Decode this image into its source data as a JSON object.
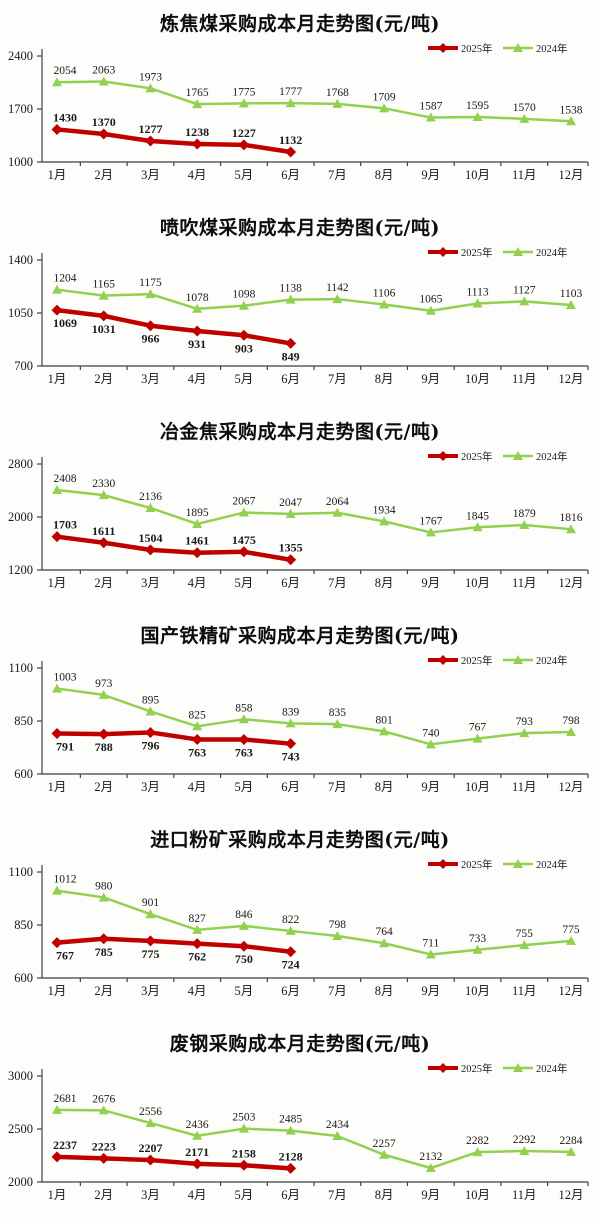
{
  "unit_note": "(元/吨)",
  "colors": {
    "red_2025": "#c00000",
    "green_2024": "#92d050",
    "axis": "#404040",
    "label": "#1a1a1a"
  },
  "legend": {
    "series_2025": "2025年",
    "series_2024": "2024年"
  },
  "chart_data": [
    {
      "type": "line",
      "title": "炼焦煤采购成本月走势图(元/吨)",
      "categories": [
        "1月",
        "2月",
        "3月",
        "4月",
        "5月",
        "6月",
        "7月",
        "8月",
        "9月",
        "10月",
        "11月",
        "12月"
      ],
      "ylim": [
        1000,
        2400
      ],
      "yticks": [
        1000,
        1700,
        2400
      ],
      "series": [
        {
          "name": "2025年",
          "color": "#c00000",
          "marker": "diamond",
          "width": 4.5,
          "labels": "above",
          "bold": true,
          "values": [
            1430,
            1370,
            1277,
            1238,
            1227,
            1132
          ]
        },
        {
          "name": "2024年",
          "color": "#92d050",
          "marker": "triangle",
          "width": 2.5,
          "labels": "above",
          "bold": false,
          "values": [
            2054,
            2063,
            1973,
            1765,
            1775,
            1777,
            1768,
            1709,
            1587,
            1595,
            1570,
            1538
          ]
        }
      ]
    },
    {
      "type": "line",
      "title": "喷吹煤采购成本月走势图(元/吨)",
      "categories": [
        "1月",
        "2月",
        "3月",
        "4月",
        "5月",
        "6月",
        "7月",
        "8月",
        "9月",
        "10月",
        "11月",
        "12月"
      ],
      "ylim": [
        700,
        1400
      ],
      "yticks": [
        700,
        1050,
        1400
      ],
      "series": [
        {
          "name": "2025年",
          "color": "#c00000",
          "marker": "diamond",
          "width": 4.5,
          "labels": "below",
          "bold": true,
          "values": [
            1069,
            1031,
            966,
            931,
            903,
            849
          ]
        },
        {
          "name": "2024年",
          "color": "#92d050",
          "marker": "triangle",
          "width": 2.5,
          "labels": "above",
          "bold": false,
          "values": [
            1204,
            1165,
            1175,
            1078,
            1098,
            1138,
            1142,
            1106,
            1065,
            1113,
            1127,
            1103
          ]
        }
      ]
    },
    {
      "type": "line",
      "title": "冶金焦采购成本月走势图(元/吨)",
      "categories": [
        "1月",
        "2月",
        "3月",
        "4月",
        "5月",
        "6月",
        "7月",
        "8月",
        "9月",
        "10月",
        "11月",
        "12月"
      ],
      "ylim": [
        1200,
        2800
      ],
      "yticks": [
        1200,
        2000,
        2800
      ],
      "series": [
        {
          "name": "2025年",
          "color": "#c00000",
          "marker": "diamond",
          "width": 4.5,
          "labels": "above",
          "bold": true,
          "values": [
            1703,
            1611,
            1504,
            1461,
            1475,
            1355
          ]
        },
        {
          "name": "2024年",
          "color": "#92d050",
          "marker": "triangle",
          "width": 2.5,
          "labels": "above",
          "bold": false,
          "values": [
            2408,
            2330,
            2136,
            1895,
            2067,
            2047,
            2064,
            1934,
            1767,
            1845,
            1879,
            1816
          ]
        }
      ]
    },
    {
      "type": "line",
      "title": "国产铁精矿采购成本月走势图(元/吨)",
      "categories": [
        "1月",
        "2月",
        "3月",
        "4月",
        "5月",
        "6月",
        "7月",
        "8月",
        "9月",
        "10月",
        "11月",
        "12月"
      ],
      "ylim": [
        600,
        1100
      ],
      "yticks": [
        600,
        850,
        1100
      ],
      "series": [
        {
          "name": "2025年",
          "color": "#c00000",
          "marker": "diamond",
          "width": 4.5,
          "labels": "below",
          "bold": true,
          "values": [
            791,
            788,
            796,
            763,
            763,
            743
          ]
        },
        {
          "name": "2024年",
          "color": "#92d050",
          "marker": "triangle",
          "width": 2.5,
          "labels": "above",
          "bold": false,
          "values": [
            1003,
            973,
            895,
            825,
            858,
            839,
            835,
            801,
            740,
            767,
            793,
            798
          ]
        }
      ]
    },
    {
      "type": "line",
      "title": "进口粉矿采购成本月走势图(元/吨)",
      "categories": [
        "1月",
        "2月",
        "3月",
        "4月",
        "5月",
        "6月",
        "7月",
        "8月",
        "9月",
        "10月",
        "11月",
        "12月"
      ],
      "ylim": [
        600,
        1100
      ],
      "yticks": [
        600,
        850,
        1100
      ],
      "series": [
        {
          "name": "2025年",
          "color": "#c00000",
          "marker": "diamond",
          "width": 4.5,
          "labels": "below",
          "bold": true,
          "values": [
            767,
            785,
            775,
            762,
            750,
            724
          ]
        },
        {
          "name": "2024年",
          "color": "#92d050",
          "marker": "triangle",
          "width": 2.5,
          "labels": "above",
          "bold": false,
          "values": [
            1012,
            980,
            901,
            827,
            846,
            822,
            798,
            764,
            711,
            733,
            755,
            775
          ]
        }
      ]
    },
    {
      "type": "line",
      "title": "废钢采购成本月走势图(元/吨)",
      "categories": [
        "1月",
        "2月",
        "3月",
        "4月",
        "5月",
        "6月",
        "7月",
        "8月",
        "9月",
        "10月",
        "11月",
        "12月"
      ],
      "ylim": [
        2000,
        3000
      ],
      "yticks": [
        2000,
        2500,
        3000
      ],
      "series": [
        {
          "name": "2025年",
          "color": "#c00000",
          "marker": "diamond",
          "width": 4.5,
          "labels": "above",
          "bold": true,
          "values": [
            2237,
            2223,
            2207,
            2171,
            2158,
            2128
          ]
        },
        {
          "name": "2024年",
          "color": "#92d050",
          "marker": "triangle",
          "width": 2.5,
          "labels": "above",
          "bold": false,
          "values": [
            2681,
            2676,
            2556,
            2436,
            2503,
            2485,
            2434,
            2257,
            2132,
            2282,
            2292,
            2284
          ]
        }
      ]
    }
  ]
}
